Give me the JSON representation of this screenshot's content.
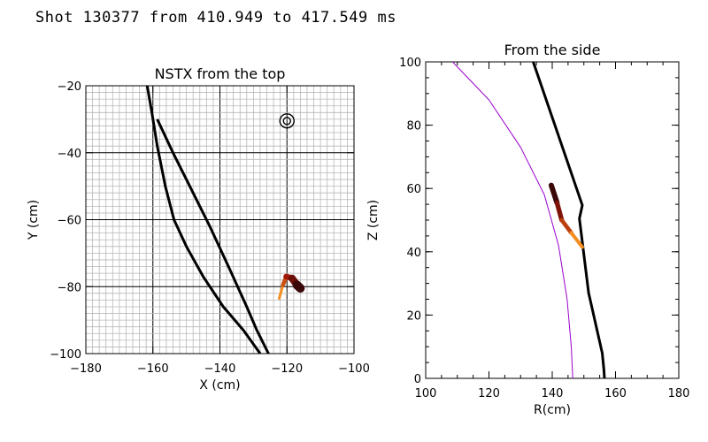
{
  "page_title": "Shot 130377 from 410.949 to 417.549 ms",
  "chart_data": [
    {
      "type": "line",
      "title": "NSTX from the top",
      "xlabel": "X (cm)",
      "ylabel": "Y (cm)",
      "xlim": [
        -180,
        -100
      ],
      "ylim": [
        -100,
        -20
      ],
      "xticks": [
        -180,
        -160,
        -140,
        -120,
        -100
      ],
      "yticks": [
        -100,
        -80,
        -60,
        -40,
        -20
      ],
      "xtick_labels": [
        "−180",
        "−160",
        "−140",
        "−120",
        "−100"
      ],
      "ytick_labels": [
        "−100",
        "−80",
        "−60",
        "−40",
        "−20"
      ],
      "minor_grid_step": 2,
      "major_grid_step": 20,
      "series": [
        {
          "name": "outer wall",
          "color": "#000000",
          "x": [
            -161.7,
            -160.3,
            -158.7,
            -156.3,
            -153.7,
            -150.0,
            -145.0,
            -139.0,
            -133.0,
            -128.0
          ],
          "y": [
            -20,
            -28,
            -38,
            -50,
            -60,
            -68,
            -77,
            -86,
            -93,
            -100
          ]
        },
        {
          "name": "inner line",
          "color": "#000000",
          "x": [
            -158.7,
            -154.0,
            -149.0,
            -143.0,
            -137.0,
            -132.0,
            -129.0,
            -125.5
          ],
          "y": [
            -30,
            -40,
            -50,
            -62,
            -75,
            -86,
            -93,
            -100
          ]
        },
        {
          "name": "marker",
          "color": "#000000",
          "x": [
            -120
          ],
          "y": [
            -30.5
          ]
        }
      ],
      "trajectory": {
        "name": "filament path",
        "colors": [
          "#f48c1f",
          "#a01808",
          "#3a0808"
        ],
        "x": [
          -122.3,
          -121.2,
          -120.2,
          -118.5,
          -117.0,
          -116.0
        ],
        "y": [
          -83.5,
          -79.5,
          -77.0,
          -77.5,
          -79.5,
          -80.5
        ]
      }
    },
    {
      "type": "line",
      "title": "From the side",
      "xlabel": "R(cm)",
      "ylabel": "Z (cm)",
      "xlim": [
        100,
        180
      ],
      "ylim": [
        0,
        100
      ],
      "xticks": [
        100,
        120,
        140,
        160,
        180
      ],
      "yticks": [
        0,
        20,
        40,
        60,
        80,
        100
      ],
      "xtick_labels": [
        "100",
        "120",
        "140",
        "160",
        "180"
      ],
      "ytick_labels": [
        "0",
        "20",
        "40",
        "60",
        "80",
        "100"
      ],
      "series": [
        {
          "name": "boundary curve",
          "color": "#9900cc",
          "x": [
            108.5,
            120.0,
            130.0,
            137.5,
            142.0,
            144.7,
            146.0,
            146.5
          ],
          "y": [
            100,
            88,
            73,
            58,
            42,
            25,
            10,
            0
          ]
        },
        {
          "name": "wall",
          "color": "#000000",
          "x": [
            134.0,
            149.5,
            148.6,
            151.5,
            154.0,
            155.8,
            156.3,
            156.5
          ],
          "y": [
            100,
            54.7,
            50.5,
            27,
            16,
            8,
            3,
            0
          ]
        }
      ],
      "trajectory": {
        "name": "filament path",
        "colors": [
          "#3a0808",
          "#a01808",
          "#f48c1f"
        ],
        "x": [
          139.7,
          141.5,
          143.0,
          146.0,
          149.5
        ],
        "y": [
          61.0,
          55.5,
          50.0,
          46.0,
          41.5
        ]
      }
    }
  ]
}
